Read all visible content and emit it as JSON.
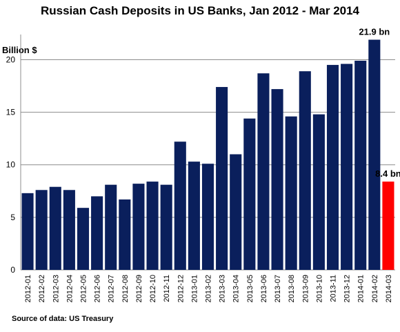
{
  "chart_data": {
    "type": "bar",
    "title": "Russian Cash Deposits in US Banks, Jan 2012 - Mar 2014",
    "ylabel": "Billion $",
    "xlabel": "",
    "ylim": [
      0,
      22
    ],
    "yticks": [
      0,
      5,
      10,
      15,
      20
    ],
    "grid": true,
    "legend": "none",
    "categories": [
      "2012-01",
      "2012-02",
      "2012-03",
      "2012-04",
      "2012-05",
      "2012-06",
      "2012-07",
      "2012-08",
      "2012-09",
      "2012-10",
      "2012-11",
      "2012-12",
      "2013-01",
      "2013-02",
      "2013-03",
      "2013-04",
      "2013-05",
      "2013-06",
      "2013-07",
      "2013-08",
      "2013-09",
      "2013-10",
      "2013-11",
      "2013-12",
      "2014-01",
      "2014-02",
      "2014-03"
    ],
    "values": [
      7.3,
      7.6,
      7.9,
      7.6,
      5.9,
      7.0,
      8.1,
      6.7,
      8.2,
      8.4,
      8.1,
      12.2,
      10.3,
      10.1,
      17.4,
      11.0,
      14.4,
      18.7,
      17.2,
      14.6,
      18.9,
      14.8,
      19.5,
      19.6,
      19.9,
      21.9,
      8.4
    ],
    "bar_colors": [
      "#0a1f5c",
      "#0a1f5c",
      "#0a1f5c",
      "#0a1f5c",
      "#0a1f5c",
      "#0a1f5c",
      "#0a1f5c",
      "#0a1f5c",
      "#0a1f5c",
      "#0a1f5c",
      "#0a1f5c",
      "#0a1f5c",
      "#0a1f5c",
      "#0a1f5c",
      "#0a1f5c",
      "#0a1f5c",
      "#0a1f5c",
      "#0a1f5c",
      "#0a1f5c",
      "#0a1f5c",
      "#0a1f5c",
      "#0a1f5c",
      "#0a1f5c",
      "#0a1f5c",
      "#0a1f5c",
      "#0a1f5c",
      "#ff0000"
    ],
    "annotations": [
      {
        "category": "2014-02",
        "text": "21.9 bn"
      },
      {
        "category": "2014-03",
        "text": "8.4 bn"
      }
    ],
    "source": "Source of data: US Treasury"
  }
}
